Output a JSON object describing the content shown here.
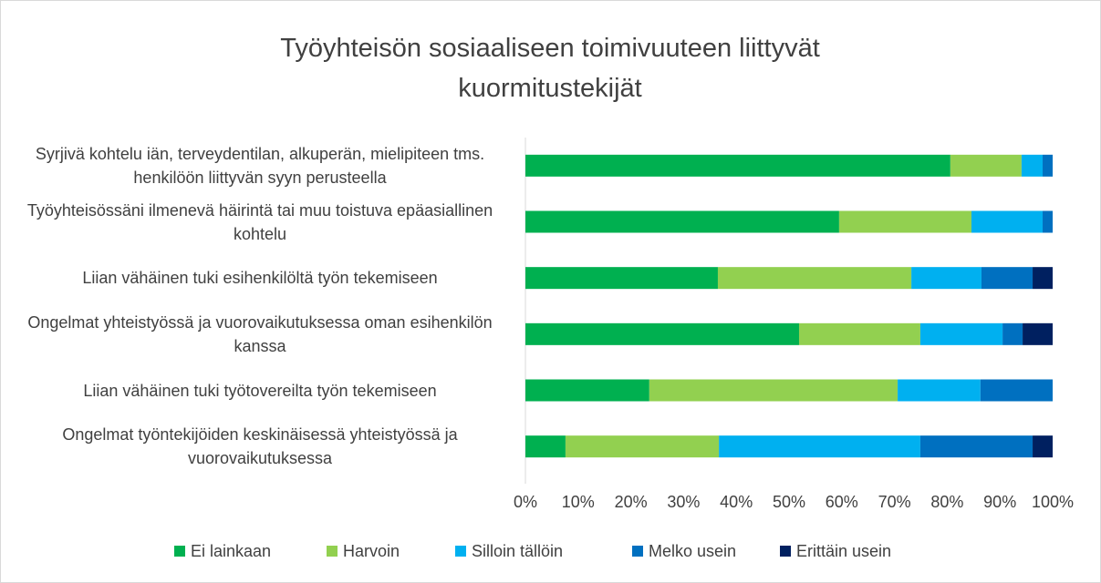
{
  "chart_data": {
    "type": "stacked-barh",
    "title": "Työyhteisön sosiaaliseen toimivuuteen liittyvät kuormitustekijät",
    "categories": [
      "Syrjivä kohtelu iän, terveydentilan, alkuperän, mielipiteen tms. henkilöön liittyvän syyn perusteella",
      "Työyhteisössäni ilmenevä häirintä tai muu toistuva epäasiallinen kohtelu",
      "Liian vähäinen tuki esihenkilöltä työn tekemiseen",
      "Ongelmat yhteistyössä ja vuorovaikutuksessa oman esihenkilön kanssa",
      "Liian vähäinen tuki työtovereilta työn tekemiseen",
      "Ongelmat työntekijöiden keskinäisessä yhteistyössä ja vuorovaikutuksessa"
    ],
    "series": [
      {
        "name": "Ei lainkaan",
        "color": "#00b050",
        "values": [
          80.6,
          59.5,
          36.5,
          51.9,
          23.5,
          7.6
        ]
      },
      {
        "name": "Harvoin",
        "color": "#92d050",
        "values": [
          13.5,
          25.1,
          36.7,
          23.0,
          47.1,
          29.1
        ]
      },
      {
        "name": "Silloin tällöin",
        "color": "#00b0f0",
        "values": [
          4.0,
          13.5,
          13.3,
          15.6,
          15.7,
          38.2
        ]
      },
      {
        "name": "Melko usein",
        "color": "#0070c0",
        "values": [
          1.9,
          1.9,
          9.7,
          3.8,
          13.7,
          21.3
        ]
      },
      {
        "name": "Erittäin usein",
        "color": "#002060",
        "values": [
          0,
          0,
          3.8,
          5.7,
          0,
          3.8
        ]
      }
    ],
    "xlim": [
      0,
      100
    ],
    "xticks": [
      {
        "value": 0,
        "label": "0%"
      },
      {
        "value": 10,
        "label": "10%"
      },
      {
        "value": 20,
        "label": "20%"
      },
      {
        "value": 30,
        "label": "30%"
      },
      {
        "value": 40,
        "label": "40%"
      },
      {
        "value": 50,
        "label": "50%"
      },
      {
        "value": 60,
        "label": "60%"
      },
      {
        "value": 70,
        "label": "70%"
      },
      {
        "value": 80,
        "label": "80%"
      },
      {
        "value": 90,
        "label": "90%"
      },
      {
        "value": 100,
        "label": "100%"
      }
    ],
    "legend": "bottom"
  }
}
